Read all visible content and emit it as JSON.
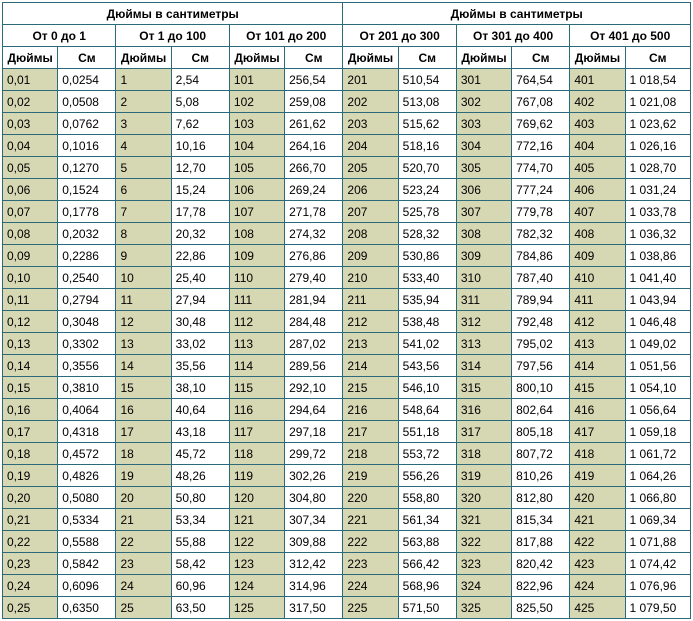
{
  "title_left": "Дюймы в сантиметры",
  "title_right": "Дюймы в сантиметры",
  "range_headers": [
    "От 0 до 1",
    "От 1 до 100",
    "От 101 до 200",
    "От 201 до 300",
    "От 301 до 400",
    "От 401 до 500"
  ],
  "col_inch": "Дюймы",
  "col_cm": "См",
  "colors": {
    "border": "#2a6a7a",
    "inch_bg": "#d6d7b3",
    "cm_bg": "#ffffff",
    "header_bg": "#ffffff",
    "text": "#000000"
  },
  "font_size": 12,
  "rows": [
    {
      "i0": "0,01",
      "c0": "0,0254",
      "i1": "1",
      "c1": "2,54",
      "i2": "101",
      "c2": "256,54",
      "i3": "201",
      "c3": "510,54",
      "i4": "301",
      "c4": "764,54",
      "i5": "401",
      "c5": "1 018,54"
    },
    {
      "i0": "0,02",
      "c0": "0,0508",
      "i1": "2",
      "c1": "5,08",
      "i2": "102",
      "c2": "259,08",
      "i3": "202",
      "c3": "513,08",
      "i4": "302",
      "c4": "767,08",
      "i5": "402",
      "c5": "1 021,08"
    },
    {
      "i0": "0,03",
      "c0": "0,0762",
      "i1": "3",
      "c1": "7,62",
      "i2": "103",
      "c2": "261,62",
      "i3": "203",
      "c3": "515,62",
      "i4": "303",
      "c4": "769,62",
      "i5": "403",
      "c5": "1 023,62"
    },
    {
      "i0": "0,04",
      "c0": "0,1016",
      "i1": "4",
      "c1": "10,16",
      "i2": "104",
      "c2": "264,16",
      "i3": "204",
      "c3": "518,16",
      "i4": "304",
      "c4": "772,16",
      "i5": "404",
      "c5": "1 026,16"
    },
    {
      "i0": "0,05",
      "c0": "0,1270",
      "i1": "5",
      "c1": "12,70",
      "i2": "105",
      "c2": "266,70",
      "i3": "205",
      "c3": "520,70",
      "i4": "305",
      "c4": "774,70",
      "i5": "405",
      "c5": "1 028,70"
    },
    {
      "i0": "0,06",
      "c0": "0,1524",
      "i1": "6",
      "c1": "15,24",
      "i2": "106",
      "c2": "269,24",
      "i3": "206",
      "c3": "523,24",
      "i4": "306",
      "c4": "777,24",
      "i5": "406",
      "c5": "1 031,24"
    },
    {
      "i0": "0,07",
      "c0": "0,1778",
      "i1": "7",
      "c1": "17,78",
      "i2": "107",
      "c2": "271,78",
      "i3": "207",
      "c3": "525,78",
      "i4": "307",
      "c4": "779,78",
      "i5": "407",
      "c5": "1 033,78"
    },
    {
      "i0": "0,08",
      "c0": "0,2032",
      "i1": "8",
      "c1": "20,32",
      "i2": "108",
      "c2": "274,32",
      "i3": "208",
      "c3": "528,32",
      "i4": "308",
      "c4": "782,32",
      "i5": "408",
      "c5": "1 036,32"
    },
    {
      "i0": "0,09",
      "c0": "0,2286",
      "i1": "9",
      "c1": "22,86",
      "i2": "109",
      "c2": "276,86",
      "i3": "209",
      "c3": "530,86",
      "i4": "309",
      "c4": "784,86",
      "i5": "409",
      "c5": "1 038,86"
    },
    {
      "i0": "0,10",
      "c0": "0,2540",
      "i1": "10",
      "c1": "25,40",
      "i2": "110",
      "c2": "279,40",
      "i3": "210",
      "c3": "533,40",
      "i4": "310",
      "c4": "787,40",
      "i5": "410",
      "c5": "1 041,40"
    },
    {
      "i0": "0,11",
      "c0": "0,2794",
      "i1": "11",
      "c1": "27,94",
      "i2": "111",
      "c2": "281,94",
      "i3": "211",
      "c3": "535,94",
      "i4": "311",
      "c4": "789,94",
      "i5": "411",
      "c5": "1 043,94"
    },
    {
      "i0": "0,12",
      "c0": "0,3048",
      "i1": "12",
      "c1": "30,48",
      "i2": "112",
      "c2": "284,48",
      "i3": "212",
      "c3": "538,48",
      "i4": "312",
      "c4": "792,48",
      "i5": "412",
      "c5": "1 046,48"
    },
    {
      "i0": "0,13",
      "c0": "0,3302",
      "i1": "13",
      "c1": "33,02",
      "i2": "113",
      "c2": "287,02",
      "i3": "213",
      "c3": "541,02",
      "i4": "313",
      "c4": "795,02",
      "i5": "413",
      "c5": "1 049,02"
    },
    {
      "i0": "0,14",
      "c0": "0,3556",
      "i1": "14",
      "c1": "35,56",
      "i2": "114",
      "c2": "289,56",
      "i3": "214",
      "c3": "543,56",
      "i4": "314",
      "c4": "797,56",
      "i5": "414",
      "c5": "1 051,56"
    },
    {
      "i0": "0,15",
      "c0": "0,3810",
      "i1": "15",
      "c1": "38,10",
      "i2": "115",
      "c2": "292,10",
      "i3": "215",
      "c3": "546,10",
      "i4": "315",
      "c4": "800,10",
      "i5": "415",
      "c5": "1 054,10"
    },
    {
      "i0": "0,16",
      "c0": "0,4064",
      "i1": "16",
      "c1": "40,64",
      "i2": "116",
      "c2": "294,64",
      "i3": "216",
      "c3": "548,64",
      "i4": "316",
      "c4": "802,64",
      "i5": "416",
      "c5": "1 056,64"
    },
    {
      "i0": "0,17",
      "c0": "0,4318",
      "i1": "17",
      "c1": "43,18",
      "i2": "117",
      "c2": "297,18",
      "i3": "217",
      "c3": "551,18",
      "i4": "317",
      "c4": "805,18",
      "i5": "417",
      "c5": "1 059,18"
    },
    {
      "i0": "0,18",
      "c0": "0,4572",
      "i1": "18",
      "c1": "45,72",
      "i2": "118",
      "c2": "299,72",
      "i3": "218",
      "c3": "553,72",
      "i4": "318",
      "c4": "807,72",
      "i5": "418",
      "c5": "1 061,72"
    },
    {
      "i0": "0,19",
      "c0": "0,4826",
      "i1": "19",
      "c1": "48,26",
      "i2": "119",
      "c2": "302,26",
      "i3": "219",
      "c3": "556,26",
      "i4": "319",
      "c4": "810,26",
      "i5": "419",
      "c5": "1 064,26"
    },
    {
      "i0": "0,20",
      "c0": "0,5080",
      "i1": "20",
      "c1": "50,80",
      "i2": "120",
      "c2": "304,80",
      "i3": "220",
      "c3": "558,80",
      "i4": "320",
      "c4": "812,80",
      "i5": "420",
      "c5": "1 066,80"
    },
    {
      "i0": "0,21",
      "c0": "0,5334",
      "i1": "21",
      "c1": "53,34",
      "i2": "121",
      "c2": "307,34",
      "i3": "221",
      "c3": "561,34",
      "i4": "321",
      "c4": "815,34",
      "i5": "421",
      "c5": "1 069,34"
    },
    {
      "i0": "0,22",
      "c0": "0,5588",
      "i1": "22",
      "c1": "55,88",
      "i2": "122",
      "c2": "309,88",
      "i3": "222",
      "c3": "563,88",
      "i4": "322",
      "c4": "817,88",
      "i5": "422",
      "c5": "1 071,88"
    },
    {
      "i0": "0,23",
      "c0": "0,5842",
      "i1": "23",
      "c1": "58,42",
      "i2": "123",
      "c2": "312,42",
      "i3": "223",
      "c3": "566,42",
      "i4": "323",
      "c4": "820,42",
      "i5": "423",
      "c5": "1 074,42"
    },
    {
      "i0": "0,24",
      "c0": "0,6096",
      "i1": "24",
      "c1": "60,96",
      "i2": "124",
      "c2": "314,96",
      "i3": "224",
      "c3": "568,96",
      "i4": "324",
      "c4": "822,96",
      "i5": "424",
      "c5": "1 076,96"
    },
    {
      "i0": "0,25",
      "c0": "0,6350",
      "i1": "25",
      "c1": "63,50",
      "i2": "125",
      "c2": "317,50",
      "i3": "225",
      "c3": "571,50",
      "i4": "325",
      "c4": "825,50",
      "i5": "425",
      "c5": "1 079,50"
    }
  ]
}
